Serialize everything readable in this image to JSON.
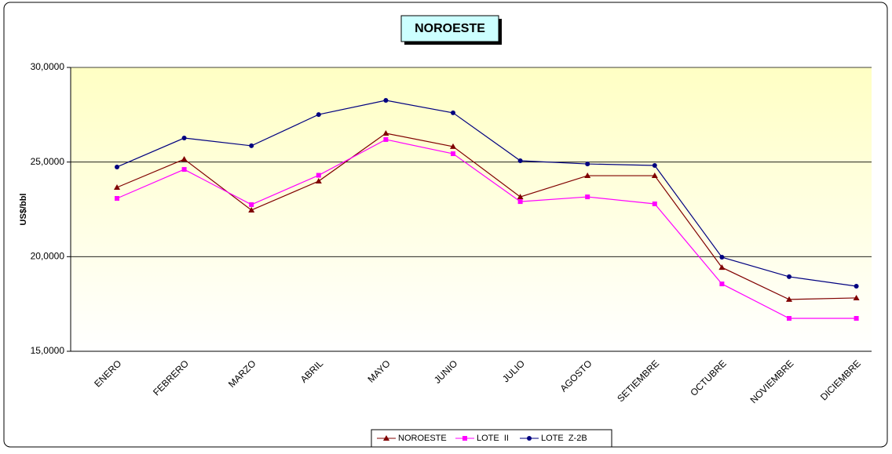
{
  "chart_data": {
    "type": "line",
    "title": "NOROESTE",
    "y_label": "US$/bbl",
    "categories": [
      "ENERO",
      "FEBRERO",
      "MARZO",
      "ABRIL",
      "MAYO",
      "JUNIO",
      "JULIO",
      "AGOSTO",
      "SETIEMBRE",
      "OCTUBRE",
      "NOVIEMBRE",
      "DICIEMBRE"
    ],
    "series": [
      {
        "name": "NOROESTE",
        "color": "#800000",
        "marker": "triangle",
        "values": [
          23660,
          25150,
          22460,
          23990,
          26520,
          25820,
          23160,
          24280,
          24280,
          19430,
          17740,
          17820
        ]
      },
      {
        "name": "LOTE  II",
        "color": "#ff00ff",
        "marker": "square",
        "values": [
          23080,
          24610,
          22750,
          24300,
          26190,
          25440,
          22910,
          23160,
          22790,
          18560,
          16740,
          16740
        ]
      },
      {
        "name": "LOTE  Z-2B",
        "color": "#000080",
        "marker": "circle",
        "values": [
          24740,
          26270,
          25860,
          27510,
          28260,
          27600,
          25070,
          24900,
          24820,
          19970,
          18940,
          18440
        ]
      }
    ],
    "ylim": [
      15000,
      30000
    ],
    "yticks": [
      {
        "value": 15000,
        "label": "15,0000"
      },
      {
        "value": 20000,
        "label": "20,0000"
      },
      {
        "value": 25000,
        "label": "25,0000"
      },
      {
        "value": 30000,
        "label": "30,0000"
      }
    ],
    "grid": true,
    "legend": "bottom"
  }
}
